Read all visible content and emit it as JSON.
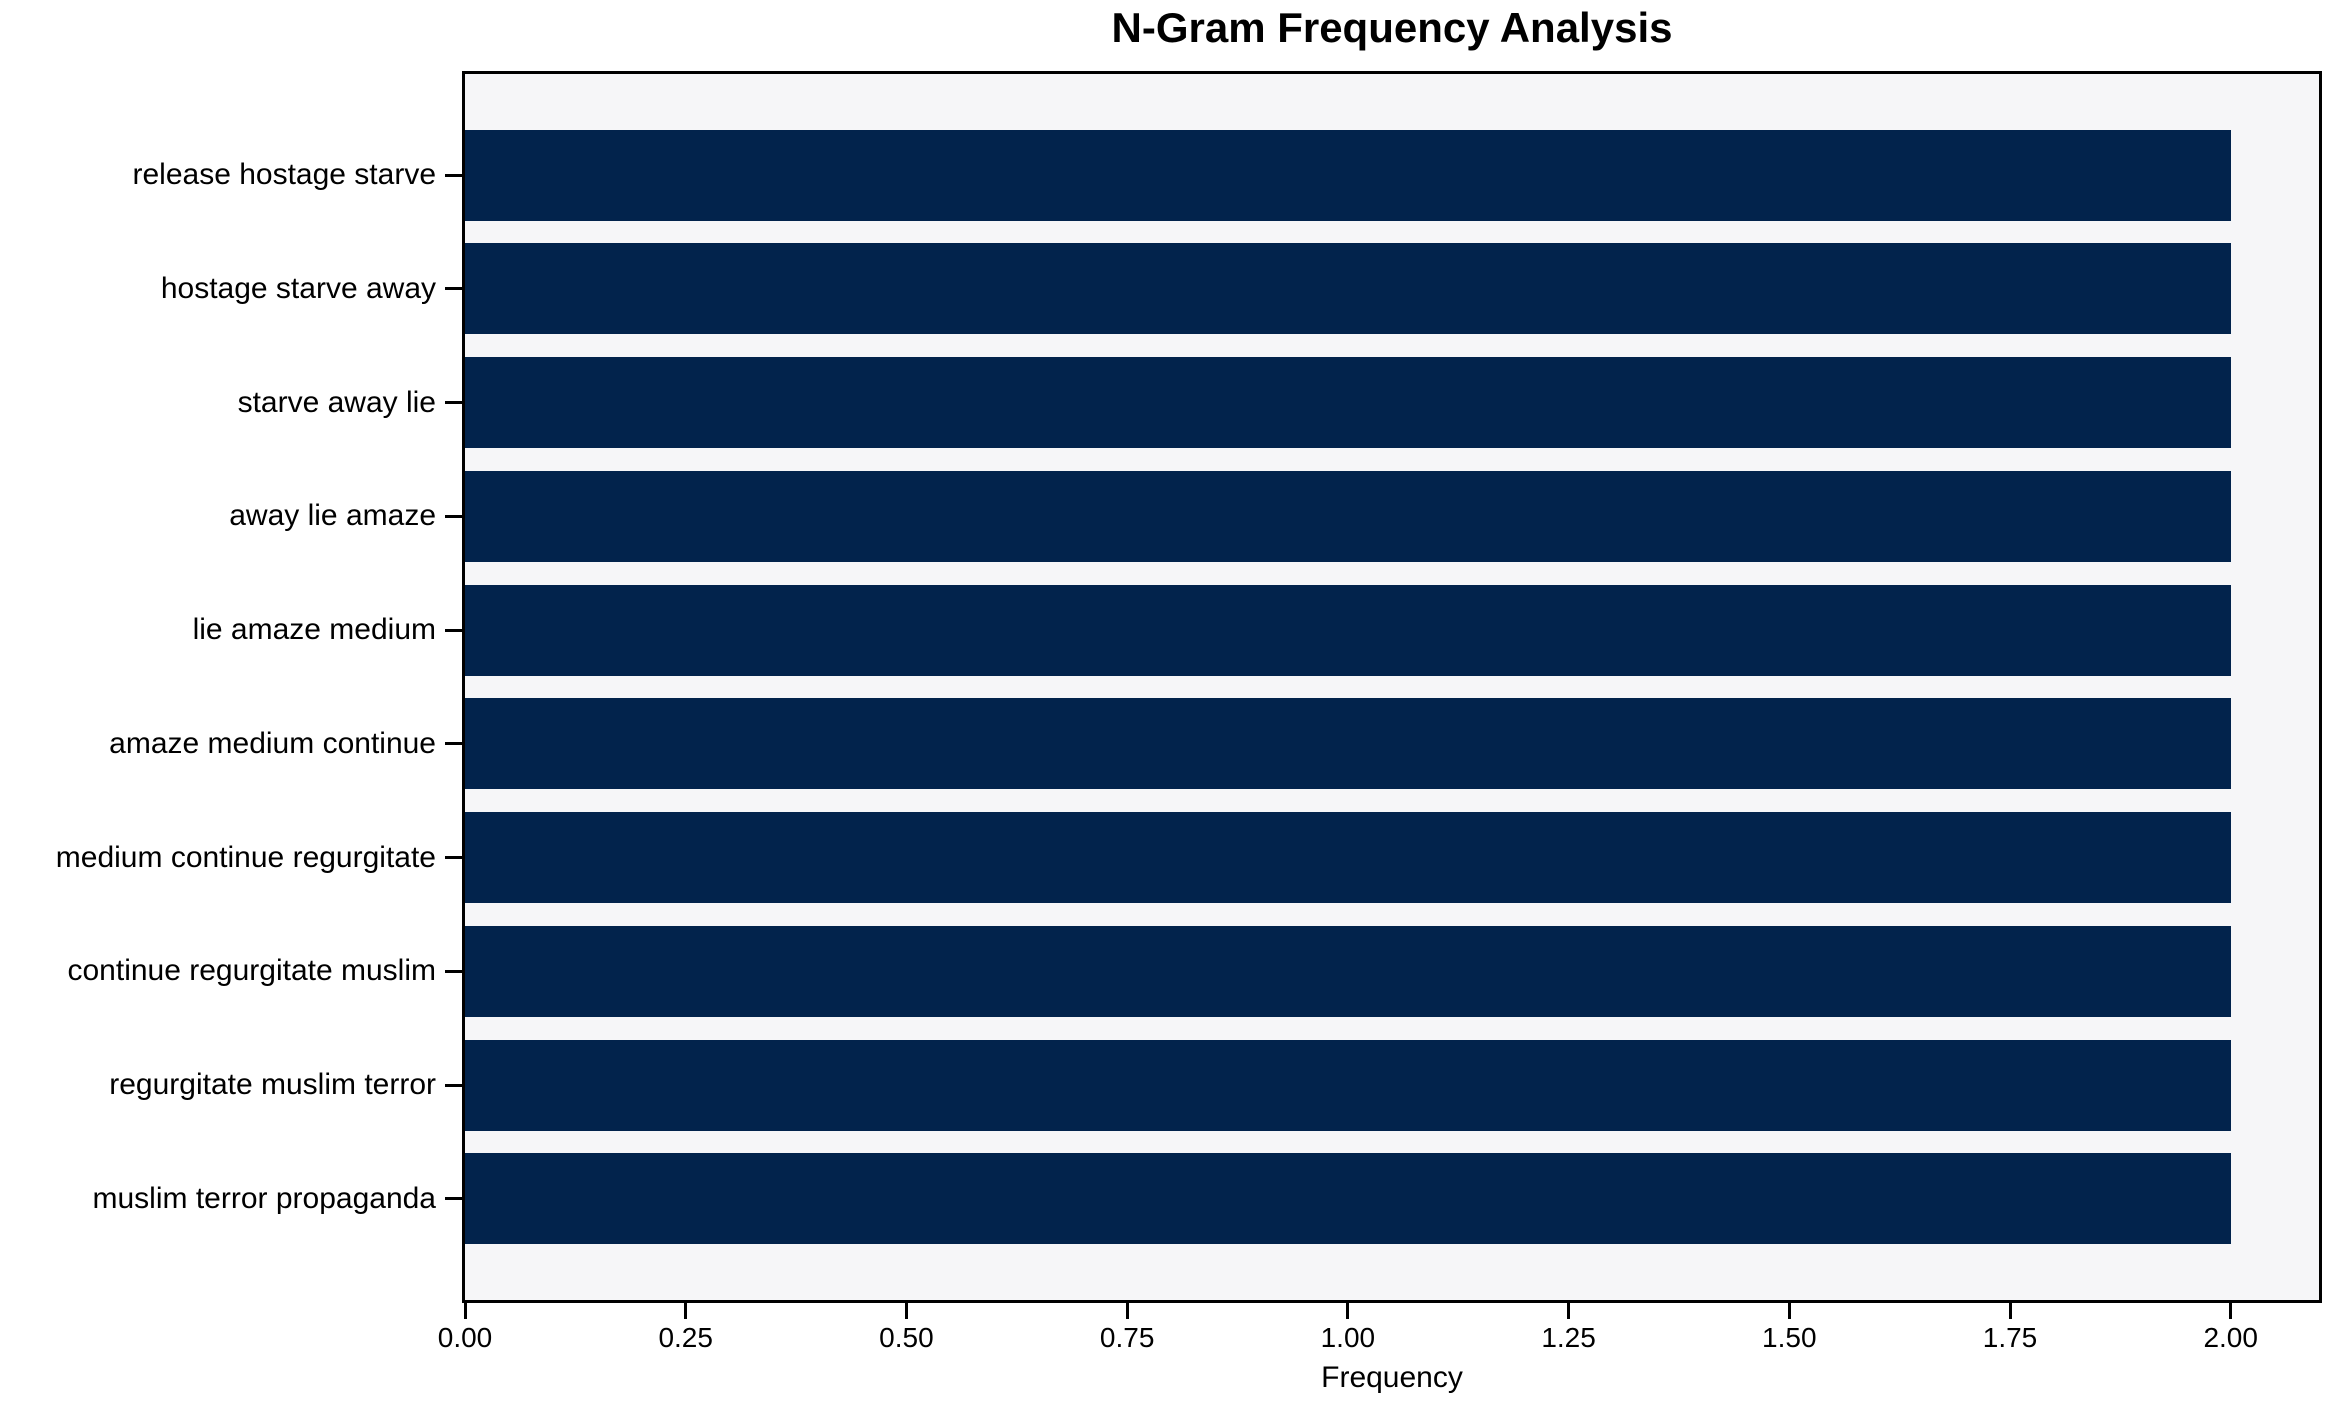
{
  "chart_data": {
    "type": "bar",
    "orientation": "horizontal",
    "title": "N-Gram Frequency Analysis",
    "xlabel": "Frequency",
    "ylabel": "",
    "categories": [
      "release hostage starve",
      "hostage starve away",
      "starve away lie",
      "away lie amaze",
      "lie amaze medium",
      "amaze medium continue",
      "medium continue regurgitate",
      "continue regurgitate muslim",
      "regurgitate muslim terror",
      "muslim terror propaganda"
    ],
    "values": [
      2,
      2,
      2,
      2,
      2,
      2,
      2,
      2,
      2,
      2
    ],
    "xlim": [
      0,
      2.1
    ],
    "xtick_labels": [
      "0.00",
      "0.25",
      "0.50",
      "0.75",
      "1.00",
      "1.25",
      "1.50",
      "1.75",
      "2.00"
    ],
    "grid": false,
    "legend": "none",
    "bar_color": "#02234c",
    "plot_bg_color": "#f6f6f8",
    "figure_bg_color": "#ffffff",
    "spine_color": "#000000",
    "text_color": "#000000"
  }
}
